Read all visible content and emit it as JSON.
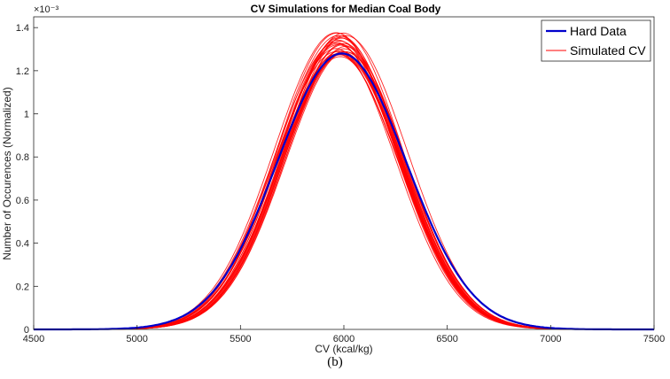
{
  "chart_data": {
    "type": "line",
    "title": "CV Simulations for Median Coal Body",
    "xlabel": "CV (kcal/kg)",
    "ylabel": "Number of Occurences (Normalized)",
    "y_exponent_label": "×10⁻³",
    "xlim": [
      4500,
      7500
    ],
    "ylim": [
      0,
      0.00145
    ],
    "xticks": [
      4500,
      5000,
      5500,
      6000,
      6500,
      7000,
      7500
    ],
    "yticks": [
      0,
      0.0002,
      0.0004,
      0.0006,
      0.0008,
      0.001,
      0.0012,
      0.0014
    ],
    "ytick_labels": [
      "0",
      "0.2",
      "0.4",
      "0.6",
      "0.8",
      "1",
      "1.2",
      "1.4"
    ],
    "legend_position": "top-right",
    "grid": false,
    "series": [
      {
        "name": "Hard Data",
        "color": "#0000cc",
        "distribution": {
          "mean": 5990,
          "sd": 312,
          "peak": 0.00128
        }
      },
      {
        "name": "Simulated CV",
        "color": "#ff0000",
        "count": 30,
        "distribution": {
          "mean_range": [
            5960,
            6010
          ],
          "sd_range": [
            283,
            300
          ],
          "peak_range": [
            0.00126,
            0.00138
          ]
        }
      }
    ]
  },
  "caption": "(b)"
}
